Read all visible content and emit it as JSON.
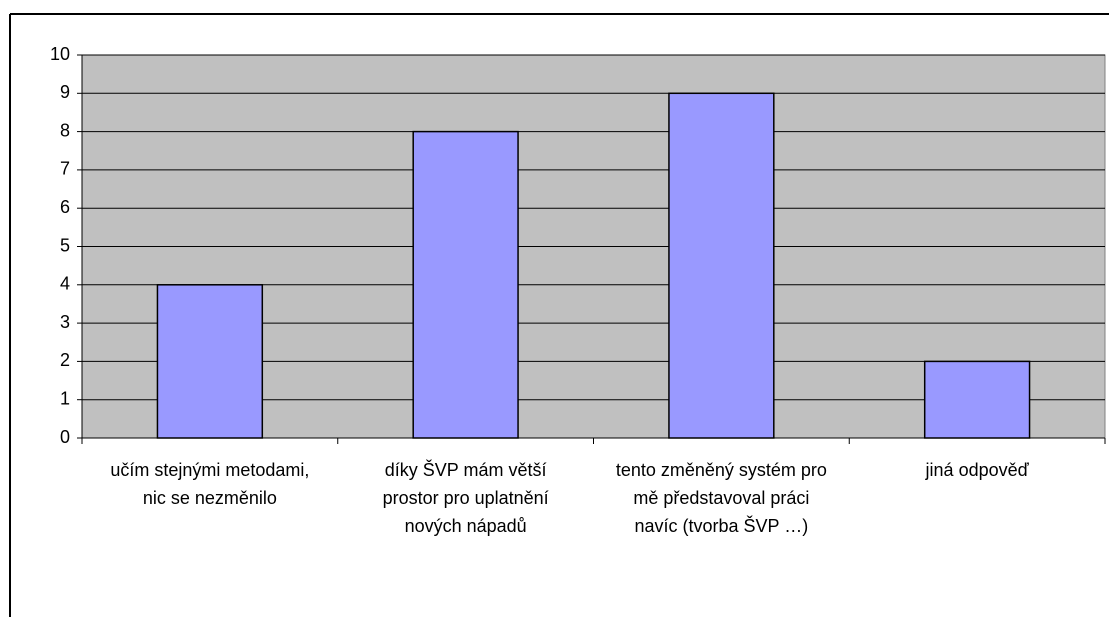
{
  "chart_data": {
    "type": "bar",
    "categories": [
      "učím stejnými metodami, nic se nezměnilo",
      "díky ŠVP mám větší prostor pro uplatnění nových nápadů",
      "tento změněný systém pro mě představoval práci navíc (tvorba ŠVP …)",
      "jiná odpověď"
    ],
    "values": [
      4,
      8,
      9,
      2
    ],
    "color": "#9999ff",
    "ylim": [
      0,
      10
    ],
    "yticks": [
      0,
      1,
      2,
      3,
      4,
      5,
      6,
      7,
      8,
      9,
      10
    ],
    "grid": true
  }
}
